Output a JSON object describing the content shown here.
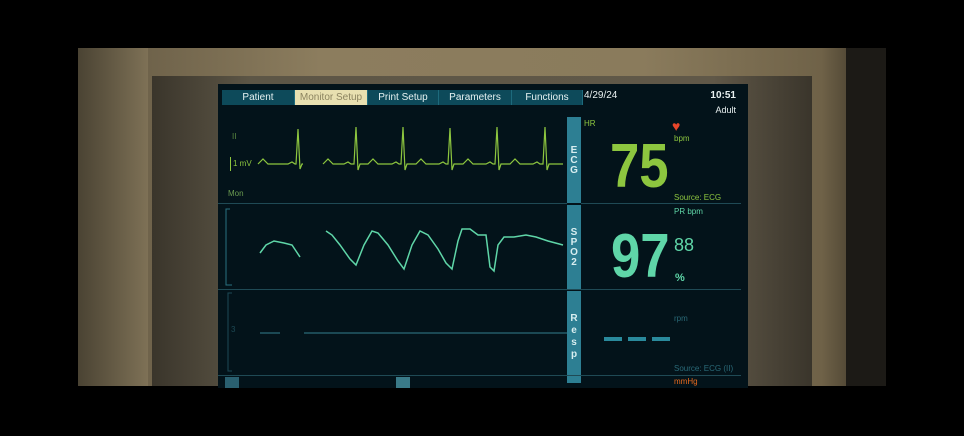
{
  "tabs": [
    {
      "label": "Patient",
      "active": false
    },
    {
      "label": "Monitor Setup",
      "active": true
    },
    {
      "label": "Print Setup",
      "active": false
    },
    {
      "label": "Parameters",
      "active": false
    },
    {
      "label": "Functions",
      "active": false
    }
  ],
  "header": {
    "date": "4/29/24",
    "time": "10:51",
    "patient_type": "Adult"
  },
  "ecg": {
    "section_label": "ECG",
    "lead": "II",
    "scale": "1 mV",
    "filter": "Mon",
    "hr_label": "HR",
    "value": "75",
    "unit": "bpm",
    "source": "Source: ECG",
    "color": "#8dc63f",
    "icon": "heart-icon",
    "icon_color": "#e8452a"
  },
  "spo2": {
    "section_label": "SPO2",
    "pr_label": "PR bpm",
    "value": "97",
    "pr_value": "88",
    "unit": "%",
    "color": "#5fd6a8"
  },
  "resp": {
    "section_label": "Resp",
    "unit": "rpm",
    "value": "---",
    "source": "Source: ECG (II)",
    "color": "#2a8a9c",
    "scale": "3"
  },
  "nibp": {
    "unit": "mmHg",
    "color": "#e86a1e"
  }
}
